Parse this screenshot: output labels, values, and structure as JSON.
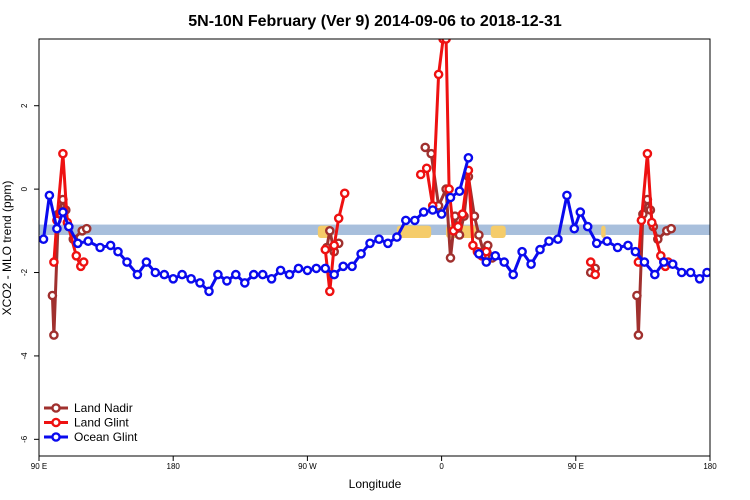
{
  "chart_data": {
    "type": "line",
    "title": "5N-10N February (Ver 9)   2014-09-06 to 2018-12-31",
    "xlabel": "Longitude",
    "ylabel": "XCO2 - MLO trend (ppm)",
    "x_ticks": [
      {
        "value": 90,
        "label": "90 E"
      },
      {
        "value": 180,
        "label": "180"
      },
      {
        "value": 270,
        "label": "90 W"
      },
      {
        "value": 360,
        "label": "0"
      },
      {
        "value": 450,
        "label": "90 E"
      },
      {
        "value": 540,
        "label": "180"
      }
    ],
    "y_ticks": [
      {
        "value": 2,
        "label": "2"
      },
      {
        "value": 0,
        "label": "0"
      },
      {
        "value": -2,
        "label": "-2"
      },
      {
        "value": -4,
        "label": "-4"
      },
      {
        "value": -6,
        "label": "-6"
      }
    ],
    "xlim": [
      90,
      540
    ],
    "ylim": [
      -6.4,
      3.6
    ],
    "reference_band": {
      "ymin": -1.1,
      "ymax": -0.85,
      "color": "#a8bfdc"
    },
    "land_shading_color": "#f5cc6a",
    "land_shading": [
      [
        277,
        287
      ],
      [
        330,
        353
      ],
      [
        363,
        385
      ],
      [
        393,
        403
      ],
      [
        467,
        470
      ]
    ],
    "legend": {
      "position": "bottom-left",
      "entries": [
        "Land Nadir",
        "Land Glint",
        "Ocean Glint"
      ]
    },
    "series": [
      {
        "name": "Land Nadir",
        "color": "#a0302e",
        "segments": [
          [
            [
              99,
              -2.55
            ],
            [
              100,
              -3.5
            ],
            [
              103,
              -0.6
            ],
            [
              106,
              -0.25
            ],
            [
              108,
              -0.5
            ],
            [
              110,
              -0.9
            ],
            [
              113,
              -1.2
            ],
            [
              119,
              -1.0
            ],
            [
              122,
              -0.95
            ]
          ],
          [
            [
              283,
              -1.4
            ],
            [
              285,
              -1.0
            ],
            [
              288,
              -1.5
            ],
            [
              291,
              -1.3
            ]
          ],
          [
            [
              349,
              1.0
            ],
            [
              353,
              0.85
            ],
            [
              358,
              -0.4
            ],
            [
              363,
              0.0
            ],
            [
              366,
              -1.65
            ],
            [
              369,
              -0.65
            ],
            [
              372,
              -1.1
            ],
            [
              375,
              -0.65
            ],
            [
              378,
              0.3
            ],
            [
              382,
              -0.65
            ],
            [
              385,
              -1.1
            ],
            [
              388,
              -1.5
            ],
            [
              391,
              -1.35
            ],
            [
              394,
              -1.65
            ]
          ],
          [
            [
              460,
              -2.0
            ],
            [
              463,
              -1.9
            ]
          ],
          [
            [
              491,
              -2.55
            ],
            [
              492,
              -3.5
            ],
            [
              495,
              -0.6
            ],
            [
              498,
              -0.25
            ],
            [
              500,
              -0.5
            ],
            [
              502,
              -0.9
            ],
            [
              505,
              -1.2
            ],
            [
              511,
              -1.0
            ],
            [
              514,
              -0.95
            ]
          ]
        ]
      },
      {
        "name": "Land Glint",
        "color": "#ee1111",
        "segments": [
          [
            [
              100,
              -1.75
            ],
            [
              102,
              -0.75
            ],
            [
              106,
              0.85
            ],
            [
              109,
              -0.8
            ],
            [
              115,
              -1.6
            ],
            [
              118,
              -1.85
            ],
            [
              120,
              -1.75
            ]
          ],
          [
            [
              282,
              -1.45
            ],
            [
              285,
              -2.45
            ],
            [
              288,
              -1.35
            ],
            [
              291,
              -0.7
            ],
            [
              295,
              -0.1
            ]
          ],
          [
            [
              346,
              0.35
            ],
            [
              350,
              0.5
            ],
            [
              354,
              -0.4
            ],
            [
              358,
              2.75
            ],
            [
              361,
              3.6
            ],
            [
              363,
              3.6
            ],
            [
              365,
              0.0
            ],
            [
              368,
              -1.0
            ],
            [
              371,
              -0.9
            ],
            [
              374,
              -0.6
            ],
            [
              378,
              0.45
            ],
            [
              381,
              -1.35
            ],
            [
              384,
              -1.5
            ],
            [
              387,
              -1.6
            ],
            [
              390,
              -1.5
            ]
          ],
          [
            [
              460,
              -1.75
            ],
            [
              463,
              -2.05
            ]
          ],
          [
            [
              492,
              -1.75
            ],
            [
              494,
              -0.75
            ],
            [
              498,
              0.85
            ],
            [
              501,
              -0.8
            ],
            [
              507,
              -1.6
            ],
            [
              510,
              -1.85
            ],
            [
              512,
              -1.75
            ]
          ]
        ]
      },
      {
        "name": "Ocean Glint",
        "color": "#0a0aee",
        "segments": [
          [
            [
              93,
              -1.2
            ],
            [
              97,
              -0.15
            ],
            [
              102,
              -0.95
            ],
            [
              106,
              -0.55
            ],
            [
              110,
              -0.9
            ],
            [
              116,
              -1.3
            ],
            [
              123,
              -1.25
            ],
            [
              131,
              -1.4
            ],
            [
              138,
              -1.35
            ],
            [
              143,
              -1.5
            ],
            [
              149,
              -1.75
            ],
            [
              156,
              -2.05
            ],
            [
              162,
              -1.75
            ],
            [
              168,
              -2.0
            ],
            [
              174,
              -2.05
            ],
            [
              180,
              -2.15
            ],
            [
              186,
              -2.05
            ],
            [
              192,
              -2.15
            ],
            [
              198,
              -2.25
            ],
            [
              204,
              -2.45
            ],
            [
              210,
              -2.05
            ],
            [
              216,
              -2.2
            ],
            [
              222,
              -2.05
            ],
            [
              228,
              -2.25
            ],
            [
              234,
              -2.05
            ],
            [
              240,
              -2.05
            ],
            [
              246,
              -2.15
            ],
            [
              252,
              -1.95
            ],
            [
              258,
              -2.05
            ],
            [
              264,
              -1.9
            ],
            [
              270,
              -1.95
            ],
            [
              276,
              -1.9
            ],
            [
              282,
              -1.9
            ],
            [
              288,
              -2.05
            ],
            [
              294,
              -1.85
            ],
            [
              300,
              -1.85
            ],
            [
              306,
              -1.55
            ],
            [
              312,
              -1.3
            ],
            [
              318,
              -1.2
            ],
            [
              324,
              -1.3
            ],
            [
              330,
              -1.15
            ],
            [
              336,
              -0.75
            ],
            [
              342,
              -0.75
            ],
            [
              348,
              -0.55
            ],
            [
              354,
              -0.5
            ],
            [
              360,
              -0.6
            ],
            [
              366,
              -0.2
            ],
            [
              372,
              -0.05
            ],
            [
              378,
              0.75
            ]
          ],
          [
            [
              385,
              -1.55
            ],
            [
              390,
              -1.75
            ],
            [
              396,
              -1.6
            ],
            [
              402,
              -1.75
            ],
            [
              408,
              -2.05
            ],
            [
              414,
              -1.5
            ],
            [
              420,
              -1.8
            ],
            [
              426,
              -1.45
            ],
            [
              432,
              -1.25
            ],
            [
              438,
              -1.2
            ],
            [
              444,
              -0.15
            ],
            [
              449,
              -0.95
            ],
            [
              453,
              -0.55
            ],
            [
              458,
              -0.9
            ],
            [
              464,
              -1.3
            ],
            [
              471,
              -1.25
            ],
            [
              478,
              -1.4
            ],
            [
              485,
              -1.35
            ],
            [
              490,
              -1.5
            ],
            [
              496,
              -1.75
            ],
            [
              503,
              -2.05
            ],
            [
              509,
              -1.75
            ],
            [
              515,
              -1.8
            ],
            [
              521,
              -2.0
            ],
            [
              527,
              -2.0
            ],
            [
              533,
              -2.15
            ],
            [
              538,
              -2.0
            ]
          ]
        ]
      }
    ]
  }
}
